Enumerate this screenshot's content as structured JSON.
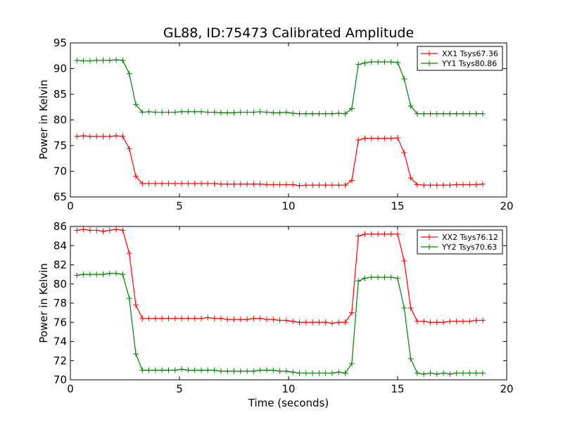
{
  "chart_data": [
    {
      "type": "line",
      "title": "GL88, ID:75473 Calibrated Amplitude",
      "xlabel": "",
      "ylabel": "Power in Kelvin",
      "xlim": [
        0,
        20
      ],
      "ylim": [
        65,
        95
      ],
      "xticks": [
        0,
        5,
        10,
        15,
        20
      ],
      "yticks": [
        65,
        70,
        75,
        80,
        85,
        90,
        95
      ],
      "grid": false,
      "legend_position": "top-right",
      "x": [
        0.3,
        0.6,
        0.9,
        1.2,
        1.5,
        1.8,
        2.1,
        2.4,
        2.7,
        3.0,
        3.3,
        3.6,
        3.9,
        4.2,
        4.5,
        4.8,
        5.1,
        5.4,
        5.7,
        6.0,
        6.3,
        6.6,
        6.9,
        7.2,
        7.5,
        7.8,
        8.1,
        8.4,
        8.7,
        9.0,
        9.3,
        9.6,
        9.9,
        10.2,
        10.5,
        10.8,
        11.1,
        11.4,
        11.7,
        12.0,
        12.3,
        12.6,
        12.9,
        13.2,
        13.5,
        13.8,
        14.1,
        14.4,
        14.7,
        15.0,
        15.3,
        15.6,
        15.9,
        16.2,
        16.5,
        16.8,
        17.1,
        17.4,
        17.7,
        18.0,
        18.3,
        18.6,
        18.9
      ],
      "series": [
        {
          "name": "XX1 Tsys67.36",
          "color": "#ff0000",
          "values": [
            76.8,
            76.9,
            76.8,
            76.8,
            76.8,
            76.8,
            76.9,
            76.8,
            74.4,
            69.0,
            67.6,
            67.6,
            67.6,
            67.6,
            67.6,
            67.6,
            67.6,
            67.6,
            67.6,
            67.6,
            67.6,
            67.6,
            67.5,
            67.5,
            67.5,
            67.5,
            67.5,
            67.5,
            67.5,
            67.4,
            67.4,
            67.4,
            67.4,
            67.4,
            67.2,
            67.3,
            67.3,
            67.3,
            67.3,
            67.3,
            67.3,
            67.3,
            68.2,
            76.1,
            76.4,
            76.4,
            76.4,
            76.4,
            76.4,
            76.5,
            73.6,
            68.7,
            67.4,
            67.3,
            67.3,
            67.3,
            67.3,
            67.3,
            67.4,
            67.4,
            67.4,
            67.4,
            67.5
          ]
        },
        {
          "name": "YY1 Tsys80.86",
          "color": "#008000",
          "values": [
            91.6,
            91.5,
            91.5,
            91.6,
            91.6,
            91.6,
            91.7,
            91.6,
            89.0,
            83.0,
            81.5,
            81.6,
            81.5,
            81.5,
            81.5,
            81.5,
            81.6,
            81.6,
            81.6,
            81.6,
            81.5,
            81.5,
            81.4,
            81.4,
            81.4,
            81.5,
            81.5,
            81.5,
            81.6,
            81.5,
            81.4,
            81.4,
            81.5,
            81.3,
            81.2,
            81.2,
            81.2,
            81.2,
            81.2,
            81.2,
            81.3,
            81.2,
            82.2,
            90.8,
            91.1,
            91.3,
            91.3,
            91.3,
            91.3,
            91.2,
            88.0,
            82.7,
            81.2,
            81.2,
            81.2,
            81.2,
            81.2,
            81.2,
            81.2,
            81.2,
            81.2,
            81.2,
            81.2
          ]
        }
      ]
    },
    {
      "type": "line",
      "title": "",
      "xlabel": "Time (seconds)",
      "ylabel": "Power in Kelvin",
      "xlim": [
        0,
        20
      ],
      "ylim": [
        70,
        86
      ],
      "xticks": [
        0,
        5,
        10,
        15,
        20
      ],
      "yticks": [
        70,
        72,
        74,
        76,
        78,
        80,
        82,
        84,
        86
      ],
      "grid": false,
      "legend_position": "top-right",
      "x": [
        0.3,
        0.6,
        0.9,
        1.2,
        1.5,
        1.8,
        2.1,
        2.4,
        2.7,
        3.0,
        3.3,
        3.6,
        3.9,
        4.2,
        4.5,
        4.8,
        5.1,
        5.4,
        5.7,
        6.0,
        6.3,
        6.6,
        6.9,
        7.2,
        7.5,
        7.8,
        8.1,
        8.4,
        8.7,
        9.0,
        9.3,
        9.6,
        9.9,
        10.2,
        10.5,
        10.8,
        11.1,
        11.4,
        11.7,
        12.0,
        12.3,
        12.6,
        12.9,
        13.2,
        13.5,
        13.8,
        14.1,
        14.4,
        14.7,
        15.0,
        15.3,
        15.6,
        15.9,
        16.2,
        16.5,
        16.8,
        17.1,
        17.4,
        17.7,
        18.0,
        18.3,
        18.6,
        18.9
      ],
      "series": [
        {
          "name": "XX2 Tsys76.12",
          "color": "#ff0000",
          "values": [
            85.6,
            85.7,
            85.6,
            85.6,
            85.5,
            85.6,
            85.7,
            85.6,
            83.2,
            77.8,
            76.4,
            76.4,
            76.4,
            76.4,
            76.4,
            76.4,
            76.4,
            76.4,
            76.4,
            76.4,
            76.5,
            76.4,
            76.4,
            76.3,
            76.3,
            76.3,
            76.3,
            76.4,
            76.4,
            76.3,
            76.3,
            76.2,
            76.2,
            76.1,
            76.0,
            76.0,
            76.0,
            76.0,
            76.0,
            75.9,
            76.0,
            76.0,
            77.0,
            85.0,
            85.2,
            85.2,
            85.2,
            85.2,
            85.2,
            85.2,
            82.4,
            77.5,
            76.1,
            76.1,
            76.0,
            76.0,
            76.0,
            76.1,
            76.1,
            76.1,
            76.1,
            76.2,
            76.2
          ]
        },
        {
          "name": "YY2 Tsys70.63",
          "color": "#008000",
          "values": [
            80.9,
            81.0,
            81.0,
            81.0,
            81.0,
            81.1,
            81.1,
            81.0,
            78.5,
            72.7,
            71.0,
            71.0,
            71.0,
            71.0,
            71.0,
            71.0,
            71.1,
            71.0,
            71.0,
            71.0,
            71.0,
            71.0,
            70.9,
            70.9,
            70.9,
            70.9,
            70.9,
            70.9,
            71.0,
            71.0,
            71.0,
            70.9,
            70.9,
            70.8,
            70.7,
            70.7,
            70.7,
            70.7,
            70.7,
            70.7,
            70.8,
            70.7,
            71.7,
            80.3,
            80.6,
            80.7,
            80.7,
            80.7,
            80.7,
            80.6,
            77.5,
            72.2,
            70.7,
            70.6,
            70.7,
            70.6,
            70.7,
            70.6,
            70.7,
            70.7,
            70.7,
            70.7,
            70.7
          ]
        }
      ]
    }
  ]
}
